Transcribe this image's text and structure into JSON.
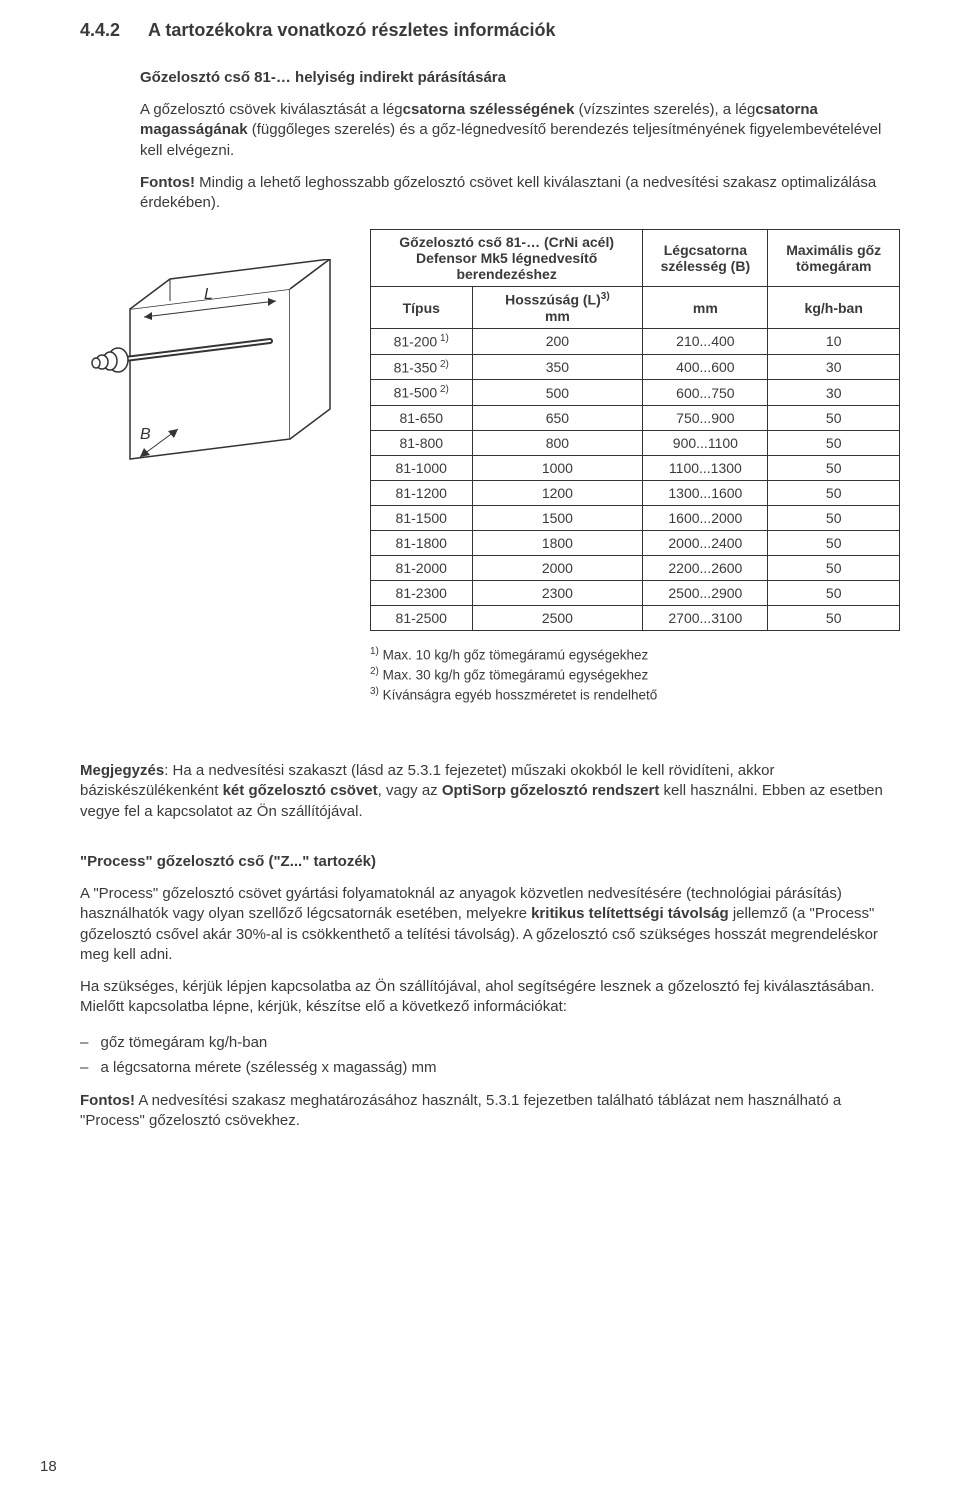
{
  "heading": {
    "num": "4.4.2",
    "title": "A tartozékokra vonatkozó részletes információk"
  },
  "sub1": "Gőzelosztó cső 81-… helyiség indirekt párásítására",
  "para1_pre": "A gőzelosztó csövek kiválasztását a lég",
  "para1_b1": "csatorna szélességének",
  "para1_mid": " (vízszintes szerelés), a lég",
  "para1_b2": "csatorna magasságának",
  "para1_post": " (függőleges szerelés) és a gőz-légnedvesítő berendezés teljesítményének figyelembevételével kell elvégezni.",
  "para2_b": "Fontos!",
  "para2_rest": " Mindig a lehető leghosszabb gőzelosztó csövet kell kiválasztani (a nedvesítési szakasz optimalizálása érdekében).",
  "table": {
    "h1a": "Gőzelosztó cső 81-… (CrNi acél)",
    "h1b": "Defensor Mk5 légnedvesítő",
    "h1c": "berendezéshez",
    "h2a": "Légcsatorna",
    "h2b": "szélesség (B)",
    "h3a": "Maximális gőz",
    "h3b": "tömegáram",
    "sub1": "Típus",
    "sub2a": "Hosszúság (L)",
    "sub2sup": "3)",
    "unit_mm1": "mm",
    "unit_mm2": "mm",
    "unit_kg": "kg/h-ban",
    "rows": [
      {
        "type": "81-200",
        "sup": "1)",
        "len": "200",
        "width": "210...400",
        "flow": "10"
      },
      {
        "type": "81-350",
        "sup": "2)",
        "len": "350",
        "width": "400...600",
        "flow": "30"
      },
      {
        "type": "81-500",
        "sup": "2)",
        "len": "500",
        "width": "600...750",
        "flow": "30"
      },
      {
        "type": "81-650",
        "sup": "",
        "len": "650",
        "width": "750...900",
        "flow": "50"
      },
      {
        "type": "81-800",
        "sup": "",
        "len": "800",
        "width": "900...1100",
        "flow": "50"
      },
      {
        "type": "81-1000",
        "sup": "",
        "len": "1000",
        "width": "1100...1300",
        "flow": "50"
      },
      {
        "type": "81-1200",
        "sup": "",
        "len": "1200",
        "width": "1300...1600",
        "flow": "50"
      },
      {
        "type": "81-1500",
        "sup": "",
        "len": "1500",
        "width": "1600...2000",
        "flow": "50"
      },
      {
        "type": "81-1800",
        "sup": "",
        "len": "1800",
        "width": "2000...2400",
        "flow": "50"
      },
      {
        "type": "81-2000",
        "sup": "",
        "len": "2000",
        "width": "2200...2600",
        "flow": "50"
      },
      {
        "type": "81-2300",
        "sup": "",
        "len": "2300",
        "width": "2500...2900",
        "flow": "50"
      },
      {
        "type": "81-2500",
        "sup": "",
        "len": "2500",
        "width": "2700...3100",
        "flow": "50"
      }
    ]
  },
  "fn1_s": "1)",
  "fn1": " Max. 10 kg/h gőz tömegáramú egységekhez",
  "fn2_s": "2)",
  "fn2": " Max. 30 kg/h gőz tömegáramú egységekhez",
  "fn3_s": "3)",
  "fn3": " Kívánságra egyéb hosszméretet is rendelhető",
  "note_b": "Megjegyzés",
  "note_pre": ": Ha a nedvesítési szakaszt (lásd az 5.3.1 fejezetet) műszaki okokból le kell rövidíteni, akkor báziskészülékenként ",
  "note_b2": "két gőzelosztó csövet",
  "note_mid": ", vagy az ",
  "note_b3": "OptiSorp gőzelosztó rendszert",
  "note_post": " kell használni. Ebben az esetben vegye fel a kapcsolatot az Ön szállítójával.",
  "sub2": "\"Process\" gőzelosztó cső (\"Z...\" tartozék)",
  "proc_p1_pre": "A \"Process\" gőzelosztó csövet gyártási folyamatoknál az anyagok közvetlen nedvesítésére (technológiai párásítás) használhatók vagy olyan szellőző légcsatornák esetében, melyekre ",
  "proc_p1_b": "kritikus telítettségi távolság",
  "proc_p1_post": " jellemző (a \"Process\" gőzelosztó csővel akár 30%-al is csökkenthető a telítési távolság). A gőzelosztó cső szükséges hosszát megrendeléskor meg kell adni.",
  "proc_p2": "Ha szükséges, kérjük lépjen kapcsolatba az Ön szállítójával, ahol segítségére lesznek a gőzelosztó fej kiválasztásában. Mielőtt kapcsolatba lépne, kérjük, készítse elő a következő információkat:",
  "li1": "gőz tömegáram kg/h-ban",
  "li2": "a légcsatorna mérete (szélesség x magasság) mm",
  "final_b": "Fontos!",
  "final_rest": " A nedvesítési szakasz meghatározásához használt, 5.3.1 fejezetben található táblázat nem használható a \"Process\" gőzelosztó csövekhez.",
  "pagenum": "18",
  "fig": {
    "L": "L",
    "B": "B"
  }
}
